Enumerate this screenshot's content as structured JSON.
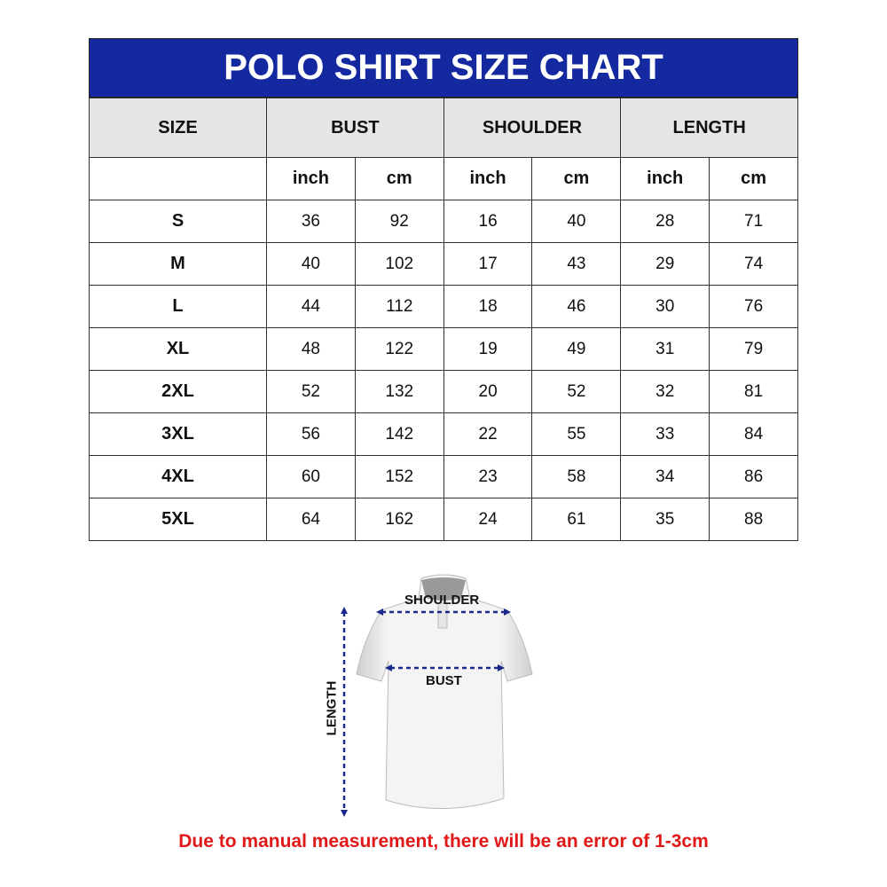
{
  "title": "POLO SHIRT SIZE CHART",
  "headers": [
    "SIZE",
    "BUST",
    "SHOULDER",
    "LENGTH"
  ],
  "units": [
    "inch",
    "cm",
    "inch",
    "cm",
    "inch",
    "cm"
  ],
  "rows": [
    {
      "size": "S",
      "values": [
        "36",
        "92",
        "16",
        "40",
        "28",
        "71"
      ]
    },
    {
      "size": "M",
      "values": [
        "40",
        "102",
        "17",
        "43",
        "29",
        "74"
      ]
    },
    {
      "size": "L",
      "values": [
        "44",
        "112",
        "18",
        "46",
        "30",
        "76"
      ]
    },
    {
      "size": "XL",
      "values": [
        "48",
        "122",
        "19",
        "49",
        "31",
        "79"
      ]
    },
    {
      "size": "2XL",
      "values": [
        "52",
        "132",
        "20",
        "52",
        "32",
        "81"
      ]
    },
    {
      "size": "3XL",
      "values": [
        "56",
        "142",
        "22",
        "55",
        "33",
        "84"
      ]
    },
    {
      "size": "4XL",
      "values": [
        "60",
        "152",
        "23",
        "58",
        "34",
        "86"
      ]
    },
    {
      "size": "5XL",
      "values": [
        "64",
        "162",
        "24",
        "61",
        "35",
        "88"
      ]
    }
  ],
  "diagram": {
    "shoulder": "SHOULDER",
    "bust": "BUST",
    "length": "LENGTH"
  },
  "note": "Due to manual measurement, there will be an error of 1-3cm",
  "colors": {
    "header": "#1428a0",
    "subheader": "#e6e6e6",
    "arrow": "#1a2a8a",
    "note": "#e01818"
  }
}
